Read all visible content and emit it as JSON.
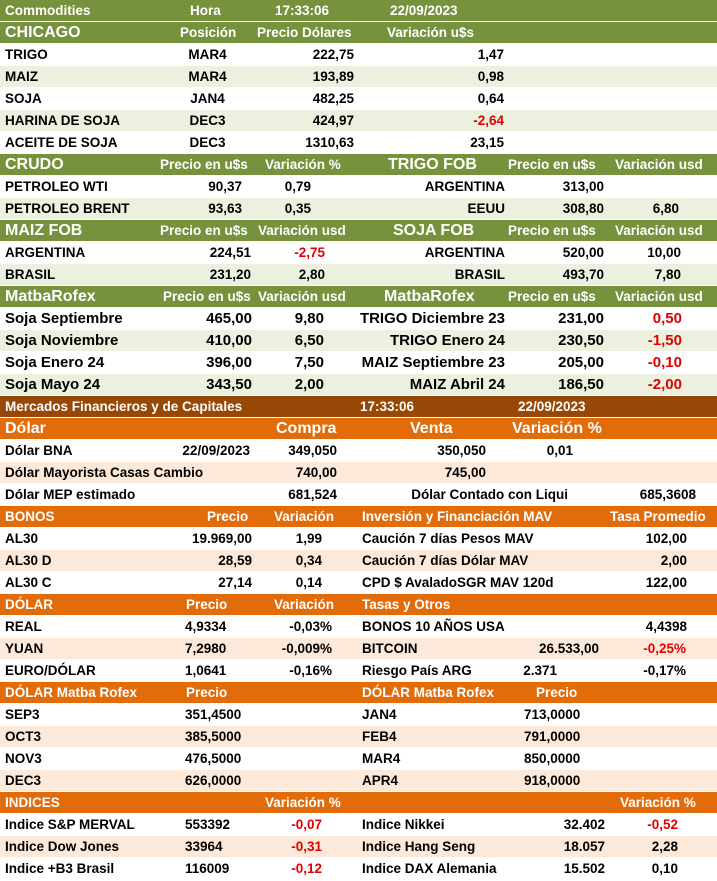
{
  "commodities_bar": {
    "title": "Commodities",
    "hora_label": "Hora",
    "time": "17:33:06",
    "date": "22/09/2023"
  },
  "chicago": {
    "title": "CHICAGO",
    "col_position": "Posición",
    "col_price": "Precio Dólares",
    "col_change": "Variación u$s",
    "rows": [
      {
        "name": "TRIGO",
        "position": "MAR4",
        "price": "222,75",
        "change": "1,47"
      },
      {
        "name": "MAIZ",
        "position": "MAR4",
        "price": "193,89",
        "change": "0,98"
      },
      {
        "name": "SOJA",
        "position": "JAN4",
        "price": "482,25",
        "change": "0,64"
      },
      {
        "name": "HARINA DE SOJA",
        "position": "DEC3",
        "price": "424,97",
        "change": "-2,64"
      },
      {
        "name": "ACEITE DE SOJA",
        "position": "DEC3",
        "price": "1310,63",
        "change": "23,15"
      }
    ]
  },
  "crudo": {
    "title": "CRUDO",
    "col_price": "Precio en u$s",
    "col_change": "Variación %",
    "rows": [
      {
        "name": "PETROLEO WTI",
        "price": "90,37",
        "change": "0,79"
      },
      {
        "name": "PETROLEO BRENT",
        "price": "93,63",
        "change": "0,35"
      }
    ]
  },
  "trigo_fob": {
    "title": "TRIGO FOB",
    "col_price": "Precio en u$s",
    "col_change": "Variación usd",
    "rows": [
      {
        "name": "ARGENTINA",
        "price": "313,00",
        "change": ""
      },
      {
        "name": "EEUU",
        "price": "308,80",
        "change": "6,80"
      }
    ]
  },
  "maiz_fob": {
    "title": "MAIZ FOB",
    "col_price": "Precio en u$s",
    "col_change": "Variación usd",
    "rows": [
      {
        "name": "ARGENTINA",
        "price": "224,51",
        "change": "-2,75"
      },
      {
        "name": "BRASIL",
        "price": "231,20",
        "change": "2,80"
      }
    ]
  },
  "soja_fob": {
    "title": "SOJA FOB",
    "col_price": "Precio en u$s",
    "col_change": "Variación usd",
    "rows": [
      {
        "name": "ARGENTINA",
        "price": "520,00",
        "change": "10,00"
      },
      {
        "name": "BRASIL",
        "price": "493,70",
        "change": "7,80"
      }
    ]
  },
  "matba_left": {
    "title": "MatbaRofex",
    "col_price": "Precio en u$s",
    "col_change": "Variación usd",
    "rows": [
      {
        "name": "Soja Septiembre",
        "price": "465,00",
        "change": "9,80"
      },
      {
        "name": "Soja Noviembre",
        "price": "410,00",
        "change": "6,50"
      },
      {
        "name": "Soja Enero 24",
        "price": "396,00",
        "change": "7,50"
      },
      {
        "name": "Soja Mayo 24",
        "price": "343,50",
        "change": "2,00"
      }
    ]
  },
  "matba_right": {
    "title": "MatbaRofex",
    "col_price": "Precio en u$s",
    "col_change": "Variación usd",
    "rows": [
      {
        "name": "TRIGO Diciembre 23",
        "price": "231,00",
        "change": "0,50"
      },
      {
        "name": "TRIGO Enero 24",
        "price": "230,50",
        "change": "-1,50"
      },
      {
        "name": "MAIZ Septiembre 23",
        "price": "205,00",
        "change": "-0,10"
      },
      {
        "name": "MAIZ Abril 24",
        "price": "186,50",
        "change": "-2,00"
      }
    ]
  },
  "mercados_bar": {
    "title": "Mercados Financieros y de Capitales",
    "time": "17:33:06",
    "date": "22/09/2023"
  },
  "dolar": {
    "title": "Dólar",
    "col_buy": "Compra",
    "col_sell": "Venta",
    "col_change": "Variación %",
    "bna": {
      "name": "Dólar BNA",
      "date": "22/09/2023",
      "buy": "349,050",
      "sell": "350,050",
      "change": "0,01"
    },
    "mayorista": {
      "name": "Dólar Mayorista Casas Cambio",
      "buy": "740,00",
      "sell": "745,00"
    },
    "mep": {
      "name": "Dólar MEP estimado",
      "value": "681,524",
      "ccl_name": "Dólar Contado con Liqui",
      "ccl_value": "685,3608"
    }
  },
  "bonos": {
    "title": "BONOS",
    "col_price": "Precio",
    "col_change": "Variación",
    "rows": [
      {
        "name": "AL30",
        "price": "19.969,00",
        "change": "1,99"
      },
      {
        "name": "AL30 D",
        "price": "28,59",
        "change": "0,34"
      },
      {
        "name": "AL30 C",
        "price": "27,14",
        "change": "0,14"
      }
    ]
  },
  "mav": {
    "title": "Inversión y Financiación MAV",
    "col_rate": "Tasa Promedio",
    "rows": [
      {
        "name": "Caución 7 días Pesos MAV",
        "rate": "102,00"
      },
      {
        "name": "Caución 7 días Dólar MAV",
        "rate": "2,00"
      },
      {
        "name": "CPD $ AvaladoSGR  MAV 120d",
        "rate": "122,00"
      }
    ]
  },
  "dolar2": {
    "title": "DÓLAR",
    "col_price": "Precio",
    "col_change": "Variación",
    "rows": [
      {
        "name": "REAL",
        "price": "4,9334",
        "change": "-0,03%"
      },
      {
        "name": "YUAN",
        "price": "7,2980",
        "change": "-0,009%"
      },
      {
        "name": "EURO/DÓLAR",
        "price": "1,0641",
        "change": "-0,16%"
      }
    ]
  },
  "tasas": {
    "title": "Tasas y Otros",
    "rows": [
      {
        "name": "BONOS 10 AÑOS USA",
        "value": "",
        "change": "4,4398"
      },
      {
        "name": "BITCOIN",
        "value": "26.533,00",
        "change": "-0,25%"
      },
      {
        "name": "Riesgo País ARG",
        "value": "2.371",
        "change": "-0,17%"
      }
    ]
  },
  "matba_dolar_left": {
    "title": "DÓLAR Matba Rofex",
    "col_price": "Precio",
    "rows": [
      {
        "name": "SEP3",
        "price": "351,4500"
      },
      {
        "name": "OCT3",
        "price": "385,5000"
      },
      {
        "name": "NOV3",
        "price": "476,5000"
      },
      {
        "name": "DEC3",
        "price": "626,0000"
      }
    ]
  },
  "matba_dolar_right": {
    "title": "DÓLAR Matba Rofex",
    "col_price": "Precio",
    "rows": [
      {
        "name": "JAN4",
        "price": "713,0000"
      },
      {
        "name": "FEB4",
        "price": "791,0000"
      },
      {
        "name": "MAR4",
        "price": "850,0000"
      },
      {
        "name": "APR4",
        "price": "918,0000"
      }
    ]
  },
  "indices": {
    "title": "INDICES",
    "col_change_left": "Variación %",
    "col_change_right": "Variación %",
    "left": [
      {
        "name": "Indice S&P MERVAL",
        "value": "553392",
        "change": "-0,07"
      },
      {
        "name": "Indice Dow Jones",
        "value": "33964",
        "change": "-0,31"
      },
      {
        "name": "Indice +B3 Brasil",
        "value": "116009",
        "change": "-0,12"
      }
    ],
    "right": [
      {
        "name": "Indice Nikkei",
        "value": "32.402",
        "change": "-0,52"
      },
      {
        "name": "Indice Hang Seng",
        "value": "18.057",
        "change": "2,28"
      },
      {
        "name": "Indice DAX Alemania",
        "value": "15.502",
        "change": "0,10"
      }
    ]
  },
  "colors": {
    "olive": "#76923c",
    "light_green": "#ebf1de",
    "brown": "#984806",
    "orange": "#e36c0a",
    "peach": "#fde9d9",
    "negative": "#e00000"
  }
}
